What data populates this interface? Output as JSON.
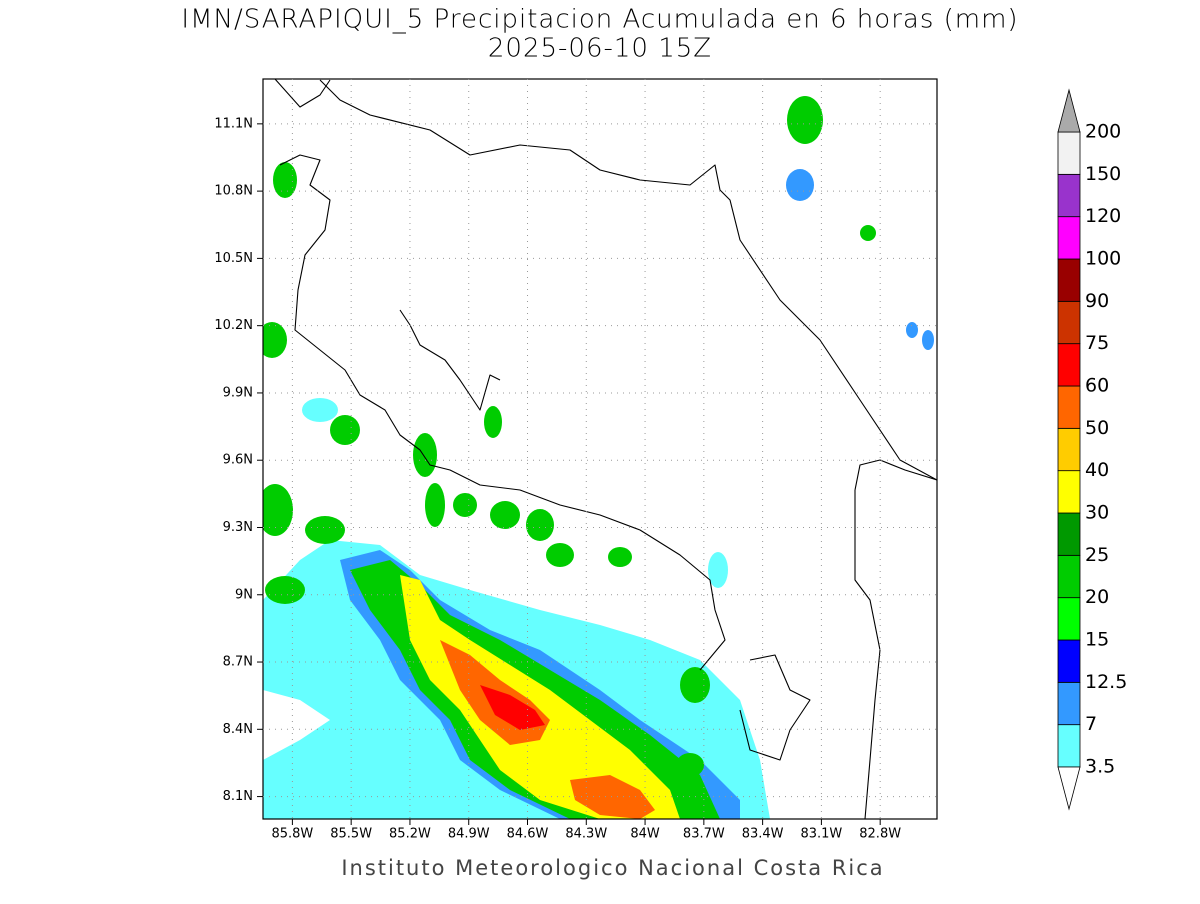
{
  "title": "IMN/SARAPIQUI_5 Precipitacion Acumulada en 6 horas (mm)",
  "subtitle": "2025-06-10 15Z",
  "footer": "Instituto Meteorologico Nacional Costa Rica",
  "map": {
    "xlim": [
      -85.95,
      -82.51
    ],
    "ylim": [
      8.0,
      11.3
    ],
    "xticks": [
      {
        "value": -85.8,
        "label": "85.8W"
      },
      {
        "value": -85.5,
        "label": "85.5W"
      },
      {
        "value": -85.2,
        "label": "85.2W"
      },
      {
        "value": -84.9,
        "label": "84.9W"
      },
      {
        "value": -84.6,
        "label": "84.6W"
      },
      {
        "value": -84.3,
        "label": "84.3W"
      },
      {
        "value": -84.0,
        "label": "84W"
      },
      {
        "value": -83.7,
        "label": "83.7W"
      },
      {
        "value": -83.4,
        "label": "83.4W"
      },
      {
        "value": -83.1,
        "label": "83.1W"
      },
      {
        "value": -82.8,
        "label": "82.8W"
      }
    ],
    "yticks": [
      {
        "value": 11.1,
        "label": "11.1N"
      },
      {
        "value": 10.8,
        "label": "10.8N"
      },
      {
        "value": 10.5,
        "label": "10.5N"
      },
      {
        "value": 10.2,
        "label": "10.2N"
      },
      {
        "value": 9.9,
        "label": "9.9N"
      },
      {
        "value": 9.6,
        "label": "9.6N"
      },
      {
        "value": 9.3,
        "label": "9.3N"
      },
      {
        "value": 9.0,
        "label": "9N"
      },
      {
        "value": 8.7,
        "label": "8.7N"
      },
      {
        "value": 8.4,
        "label": "8.4N"
      },
      {
        "value": 8.1,
        "label": "8.1N"
      }
    ],
    "grid": true
  },
  "colorbar": {
    "levels": [
      3.5,
      7,
      12.5,
      15,
      20,
      25,
      30,
      40,
      50,
      60,
      75,
      90,
      100,
      120,
      150,
      200
    ],
    "colors": [
      "#ffffff",
      "#66ffff",
      "#3399ff",
      "#0000ff",
      "#00ff00",
      "#00cc00",
      "#009900",
      "#ffff00",
      "#ffcc00",
      "#ff6600",
      "#ff0000",
      "#cc3300",
      "#990000",
      "#ff00ff",
      "#9933cc",
      "#f2f2f2",
      "#aaaaaa"
    ]
  }
}
